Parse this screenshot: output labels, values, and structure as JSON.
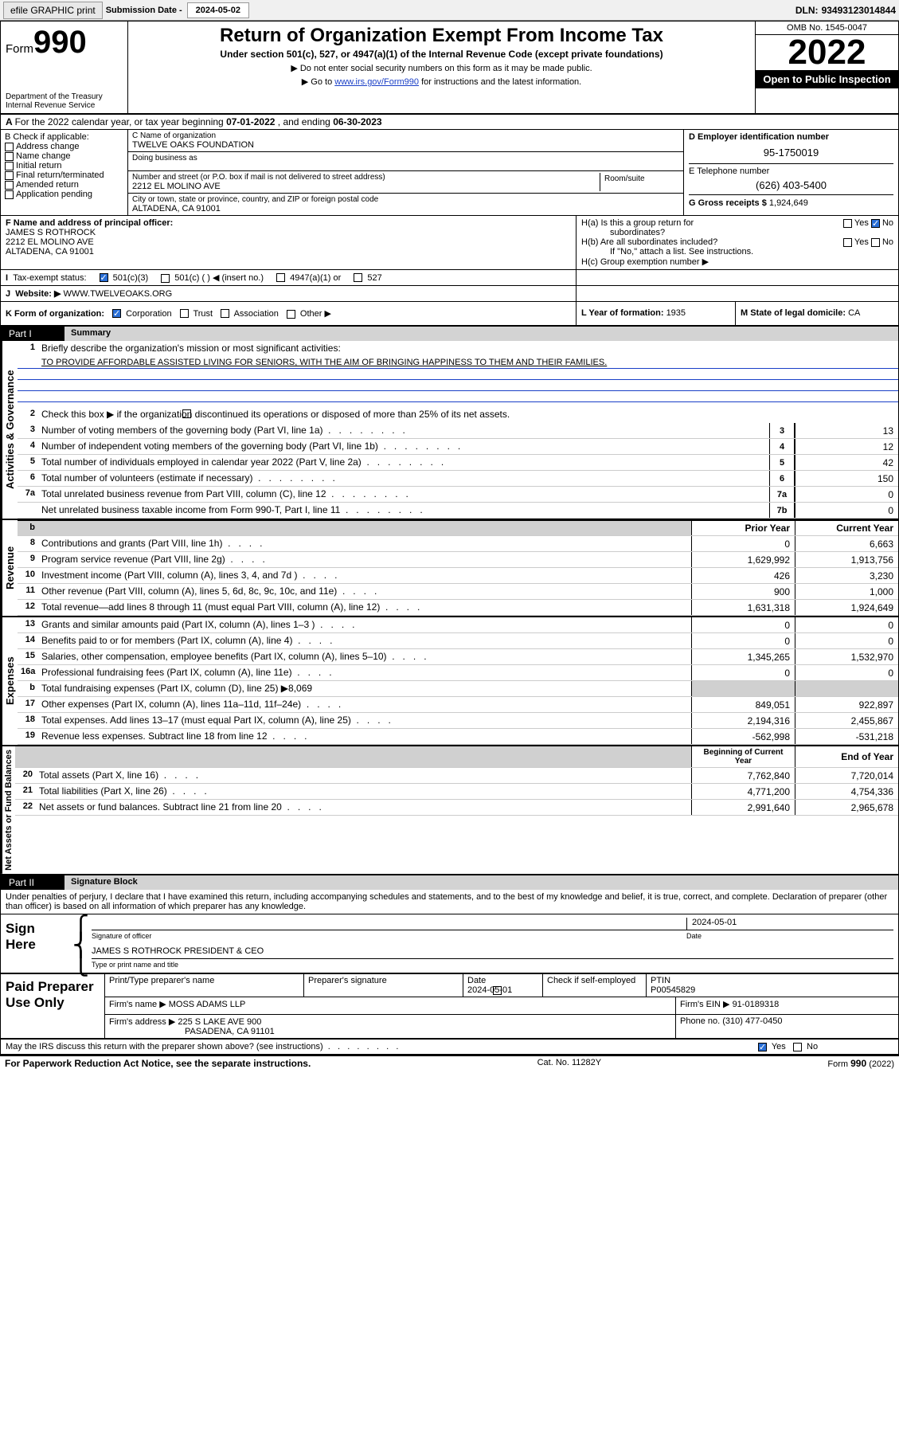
{
  "toolbar": {
    "efile": "efile GRAPHIC print",
    "sub_label": "Submission Date - ",
    "sub_date": "2024-05-02",
    "dln_label": "DLN: ",
    "dln": "93493123014844"
  },
  "header": {
    "form_prefix": "Form",
    "form_number": "990",
    "dept": "Department of the Treasury",
    "irs": "Internal Revenue Service",
    "title": "Return of Organization Exempt From Income Tax",
    "subtitle": "Under section 501(c), 527, or 4947(a)(1) of the Internal Revenue Code (except private foundations)",
    "note1": "Do not enter social security numbers on this form as it may be made public.",
    "note2_pre": "Go to ",
    "note2_link": "www.irs.gov/Form990",
    "note2_post": " for instructions and the latest information.",
    "omb": "OMB No. 1545-0047",
    "year": "2022",
    "open": "Open to Public Inspection"
  },
  "row_a": {
    "text": "For the 2022 calendar year, or tax year beginning ",
    "begin": "07-01-2022",
    "mid": " , and ending ",
    "end": "06-30-2023"
  },
  "col_b": {
    "label": "B Check if applicable:",
    "items": [
      "Address change",
      "Name change",
      "Initial return",
      "Final return/terminated",
      "Amended return",
      "Application pending"
    ]
  },
  "col_c": {
    "name_label": "C Name of organization",
    "name": "TWELVE OAKS FOUNDATION",
    "dba_label": "Doing business as",
    "street_label": "Number and street (or P.O. box if mail is not delivered to street address)",
    "room_label": "Room/suite",
    "street": "2212 EL MOLINO AVE",
    "city_label": "City or town, state or province, country, and ZIP or foreign postal code",
    "city": "ALTADENA, CA  91001"
  },
  "col_d": {
    "ein_label": "D Employer identification number",
    "ein": "95-1750019",
    "phone_label": "E Telephone number",
    "phone": "(626) 403-5400",
    "gross_label": "G Gross receipts $ ",
    "gross": "1,924,649"
  },
  "row_f": {
    "f_label": "F Name and address of principal officer:",
    "name": "JAMES S ROTHROCK",
    "addr1": "2212 EL MOLINO AVE",
    "addr2": "ALTADENA, CA  91001"
  },
  "row_h": {
    "ha": "H(a)  Is this a group return for",
    "ha2": "subordinates?",
    "hb": "H(b)  Are all subordinates included?",
    "hb_note": "If \"No,\" attach a list. See instructions.",
    "hc": "H(c)  Group exemption number ▶",
    "yes": "Yes",
    "no": "No"
  },
  "row_i": {
    "label": "Tax-exempt status:",
    "opt1": "501(c)(3)",
    "opt2": "501(c) (  ) ◀ (insert no.)",
    "opt3": "4947(a)(1) or",
    "opt4": "527"
  },
  "row_j": {
    "label": "Website: ▶ ",
    "val": "WWW.TWELVEOAKS.ORG"
  },
  "row_k": {
    "label": "K Form of organization:",
    "opts": [
      "Corporation",
      "Trust",
      "Association",
      "Other ▶"
    ]
  },
  "row_l": {
    "label": "L Year of formation: ",
    "val": "1935"
  },
  "row_m": {
    "label": "M State of legal domicile: ",
    "val": "CA"
  },
  "part1": {
    "tab": "Part I",
    "title": "Summary"
  },
  "summary": {
    "q1": "Briefly describe the organization's mission or most significant activities:",
    "mission": "TO PROVIDE AFFORDABLE ASSISTED LIVING FOR SENIORS, WITH THE AIM OF BRINGING HAPPINESS TO THEM AND THEIR FAMILIES.",
    "q2": "Check this box ▶        if the organization discontinued its operations or disposed of more than 25% of its net assets.",
    "cat1": "Activities & Governance",
    "cat2": "Revenue",
    "cat3": "Expenses",
    "cat4": "Net Assets or Fund Balances",
    "lines_gov": [
      {
        "n": "3",
        "t": "Number of voting members of the governing body (Part VI, line 1a)",
        "box": "3",
        "v": "13"
      },
      {
        "n": "4",
        "t": "Number of independent voting members of the governing body (Part VI, line 1b)",
        "box": "4",
        "v": "12"
      },
      {
        "n": "5",
        "t": "Total number of individuals employed in calendar year 2022 (Part V, line 2a)",
        "box": "5",
        "v": "42"
      },
      {
        "n": "6",
        "t": "Total number of volunteers (estimate if necessary)",
        "box": "6",
        "v": "150"
      },
      {
        "n": "7a",
        "t": "Total unrelated business revenue from Part VIII, column (C), line 12",
        "box": "7a",
        "v": "0"
      },
      {
        "n": "",
        "t": "Net unrelated business taxable income from Form 990-T, Part I, line 11",
        "box": "7b",
        "v": "0"
      }
    ],
    "col_hdr_prior": "Prior Year",
    "col_hdr_curr": "Current Year",
    "col_hdr_begin": "Beginning of Current Year",
    "col_hdr_end": "End of Year",
    "lines_rev": [
      {
        "n": "8",
        "t": "Contributions and grants (Part VIII, line 1h)",
        "p": "0",
        "c": "6,663"
      },
      {
        "n": "9",
        "t": "Program service revenue (Part VIII, line 2g)",
        "p": "1,629,992",
        "c": "1,913,756"
      },
      {
        "n": "10",
        "t": "Investment income (Part VIII, column (A), lines 3, 4, and 7d )",
        "p": "426",
        "c": "3,230"
      },
      {
        "n": "11",
        "t": "Other revenue (Part VIII, column (A), lines 5, 6d, 8c, 9c, 10c, and 11e)",
        "p": "900",
        "c": "1,000"
      },
      {
        "n": "12",
        "t": "Total revenue—add lines 8 through 11 (must equal Part VIII, column (A), line 12)",
        "p": "1,631,318",
        "c": "1,924,649"
      }
    ],
    "lines_exp": [
      {
        "n": "13",
        "t": "Grants and similar amounts paid (Part IX, column (A), lines 1–3 )",
        "p": "0",
        "c": "0"
      },
      {
        "n": "14",
        "t": "Benefits paid to or for members (Part IX, column (A), line 4)",
        "p": "0",
        "c": "0"
      },
      {
        "n": "15",
        "t": "Salaries, other compensation, employee benefits (Part IX, column (A), lines 5–10)",
        "p": "1,345,265",
        "c": "1,532,970"
      },
      {
        "n": "16a",
        "t": "Professional fundraising fees (Part IX, column (A), line 11e)",
        "p": "0",
        "c": "0"
      }
    ],
    "line_b": {
      "n": "b",
      "t": "Total fundraising expenses (Part IX, column (D), line 25) ▶",
      "v": "8,069"
    },
    "lines_exp2": [
      {
        "n": "17",
        "t": "Other expenses (Part IX, column (A), lines 11a–11d, 11f–24e)",
        "p": "849,051",
        "c": "922,897"
      },
      {
        "n": "18",
        "t": "Total expenses. Add lines 13–17 (must equal Part IX, column (A), line 25)",
        "p": "2,194,316",
        "c": "2,455,867"
      },
      {
        "n": "19",
        "t": "Revenue less expenses. Subtract line 18 from line 12",
        "p": "-562,998",
        "c": "-531,218"
      }
    ],
    "lines_net": [
      {
        "n": "20",
        "t": "Total assets (Part X, line 16)",
        "p": "7,762,840",
        "c": "7,720,014"
      },
      {
        "n": "21",
        "t": "Total liabilities (Part X, line 26)",
        "p": "4,771,200",
        "c": "4,754,336"
      },
      {
        "n": "22",
        "t": "Net assets or fund balances. Subtract line 21 from line 20",
        "p": "2,991,640",
        "c": "2,965,678"
      }
    ]
  },
  "part2": {
    "tab": "Part II",
    "title": "Signature Block"
  },
  "sig": {
    "penalties": "Under penalties of perjury, I declare that I have examined this return, including accompanying schedules and statements, and to the best of my knowledge and belief, it is true, correct, and complete. Declaration of preparer (other than officer) is based on all information of which preparer has any knowledge.",
    "sign_here": "Sign Here",
    "sig_officer": "Signature of officer",
    "date_label": "Date",
    "date": "2024-05-01",
    "name": "JAMES S ROTHROCK PRESIDENT & CEO",
    "name_label": "Type or print name and title"
  },
  "prep": {
    "title": "Paid Preparer Use Only",
    "print_label": "Print/Type preparer's name",
    "sig_label": "Preparer's signature",
    "date_label": "Date",
    "date": "2024-05-01",
    "check_label": "Check        if self-employed",
    "ptin_label": "PTIN",
    "ptin": "P00545829",
    "firm_name_label": "Firm's name    ▶ ",
    "firm_name": "MOSS ADAMS LLP",
    "firm_ein_label": "Firm's EIN ▶ ",
    "firm_ein": "91-0189318",
    "firm_addr_label": "Firm's address ▶ ",
    "firm_addr": "225 S LAKE AVE 900",
    "firm_city": "PASADENA, CA  91101",
    "phone_label": "Phone no. ",
    "phone": "(310) 477-0450"
  },
  "footer": {
    "irs_q": "May the IRS discuss this return with the preparer shown above? (see instructions)",
    "yes": "Yes",
    "no": "No",
    "pra": "For Paperwork Reduction Act Notice, see the separate instructions.",
    "cat": "Cat. No. 11282Y",
    "form": "Form 990 (2022)"
  }
}
